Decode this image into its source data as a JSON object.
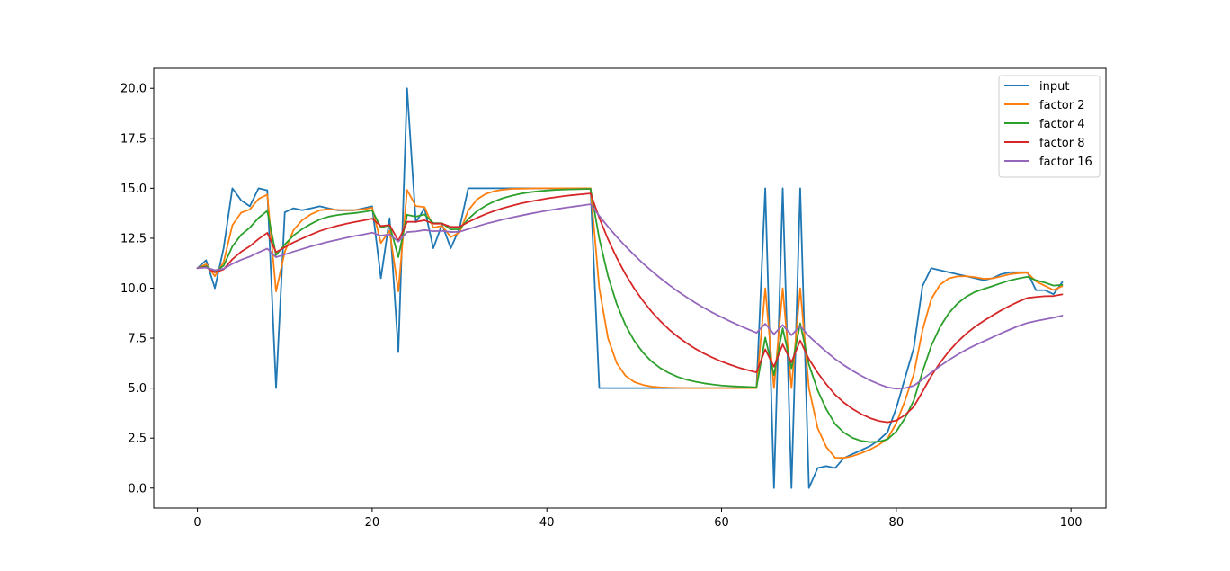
{
  "chart_data": {
    "type": "line",
    "title": "",
    "xlabel": "",
    "ylabel": "",
    "xlim": [
      -5,
      104
    ],
    "ylim": [
      -1,
      21
    ],
    "x_ticks": [
      0,
      20,
      40,
      60,
      80,
      100
    ],
    "y_ticks": [
      0.0,
      2.5,
      5.0,
      7.5,
      10.0,
      12.5,
      15.0,
      17.5,
      20.0
    ],
    "x_tick_labels": [
      "0",
      "20",
      "40",
      "60",
      "80",
      "100"
    ],
    "y_tick_labels": [
      "0.0",
      "2.5",
      "5.0",
      "7.5",
      "10.0",
      "12.5",
      "15.0",
      "17.5",
      "20.0"
    ],
    "grid": false,
    "legend_position": "top-right",
    "series": [
      {
        "name": "input",
        "color": "#1f77b4",
        "values": [
          11.0,
          11.4,
          10.0,
          12.0,
          15.0,
          14.4,
          14.1,
          15.0,
          14.9,
          5.0,
          13.8,
          14.0,
          13.9,
          14.0,
          14.1,
          14.0,
          13.9,
          13.9,
          13.9,
          14.0,
          14.1,
          10.5,
          13.5,
          6.8,
          20.0,
          13.3,
          14.0,
          12.0,
          13.2,
          12.0,
          13.0,
          15.0,
          15.0,
          15.0,
          15.0,
          15.0,
          15.0,
          15.0,
          15.0,
          15.0,
          15.0,
          15.0,
          15.0,
          15.0,
          15.0,
          15.0,
          5.0,
          5.0,
          5.0,
          5.0,
          5.0,
          5.0,
          5.0,
          5.0,
          5.0,
          5.0,
          5.0,
          5.0,
          5.0,
          5.0,
          5.0,
          5.0,
          5.0,
          5.0,
          5.0,
          15.0,
          0.0,
          15.0,
          0.0,
          15.0,
          0.0,
          1.0,
          1.1,
          1.0,
          1.5,
          1.7,
          1.9,
          2.1,
          2.4,
          2.8,
          4.0,
          5.5,
          7.0,
          10.1,
          11.0,
          10.9,
          10.8,
          10.7,
          10.6,
          10.5,
          10.4,
          10.5,
          10.7,
          10.8,
          10.8,
          10.8,
          9.9,
          9.9,
          9.7,
          10.3
        ]
      },
      {
        "name": "factor 2",
        "color": "#ff7f0e",
        "values": [
          11.0,
          11.2,
          10.6,
          11.3,
          13.15,
          13.78,
          13.94,
          14.47,
          14.68,
          9.84,
          11.82,
          12.91,
          13.41,
          13.7,
          13.9,
          13.95,
          13.92,
          13.91,
          13.91,
          13.95,
          14.03,
          12.26,
          12.88,
          9.84,
          14.92,
          14.11,
          14.06,
          13.03,
          13.12,
          12.56,
          12.78,
          13.89,
          14.44,
          14.72,
          14.86,
          14.93,
          14.97,
          14.98,
          14.99,
          15.0,
          15.0,
          15.0,
          15.0,
          15.0,
          15.0,
          15.0,
          10.0,
          7.5,
          6.25,
          5.62,
          5.31,
          5.16,
          5.08,
          5.04,
          5.02,
          5.01,
          5.0,
          5.0,
          5.0,
          5.0,
          5.0,
          5.0,
          5.0,
          5.0,
          5.0,
          10.0,
          5.0,
          10.0,
          5.0,
          10.0,
          5.0,
          3.0,
          2.05,
          1.52,
          1.51,
          1.6,
          1.75,
          1.93,
          2.16,
          2.48,
          3.24,
          4.37,
          5.69,
          7.89,
          9.45,
          10.17,
          10.49,
          10.59,
          10.6,
          10.55,
          10.47,
          10.49,
          10.59,
          10.7,
          10.75,
          10.77,
          10.34,
          10.12,
          9.91,
          10.1
        ]
      },
      {
        "name": "factor 4",
        "color": "#2ca02c",
        "values": [
          11.0,
          11.1,
          10.83,
          11.12,
          12.09,
          12.67,
          13.03,
          13.52,
          13.87,
          11.65,
          12.19,
          12.64,
          12.96,
          13.22,
          13.44,
          13.58,
          13.66,
          13.72,
          13.76,
          13.82,
          13.89,
          13.04,
          13.15,
          11.56,
          13.67,
          13.58,
          13.69,
          13.26,
          13.25,
          12.94,
          12.95,
          13.46,
          13.85,
          14.13,
          14.35,
          14.51,
          14.63,
          14.73,
          14.8,
          14.85,
          14.89,
          14.92,
          14.94,
          14.95,
          14.96,
          14.97,
          12.48,
          10.61,
          9.21,
          8.16,
          7.37,
          6.78,
          6.33,
          6.0,
          5.75,
          5.56,
          5.42,
          5.32,
          5.24,
          5.18,
          5.13,
          5.1,
          5.08,
          5.06,
          5.04,
          7.53,
          5.65,
          7.99,
          5.99,
          8.24,
          6.18,
          4.89,
          3.94,
          3.2,
          2.78,
          2.51,
          2.36,
          2.3,
          2.32,
          2.44,
          2.83,
          3.5,
          4.38,
          5.81,
          7.11,
          8.05,
          8.74,
          9.23,
          9.57,
          9.81,
          9.96,
          10.1,
          10.25,
          10.39,
          10.49,
          10.57,
          10.4,
          10.28,
          10.13,
          10.17
        ]
      },
      {
        "name": "factor 8",
        "color": "#d62728",
        "values": [
          11.0,
          11.05,
          10.79,
          10.94,
          11.45,
          11.82,
          12.1,
          12.46,
          12.77,
          11.8,
          12.05,
          12.29,
          12.49,
          12.68,
          12.86,
          13.0,
          13.12,
          13.22,
          13.31,
          13.39,
          13.48,
          13.11,
          13.16,
          12.37,
          13.32,
          13.32,
          13.4,
          13.23,
          13.23,
          13.07,
          13.07,
          13.31,
          13.52,
          13.71,
          13.87,
          14.01,
          14.13,
          14.24,
          14.33,
          14.41,
          14.49,
          14.55,
          14.61,
          14.66,
          14.7,
          14.74,
          13.52,
          12.45,
          11.52,
          10.7,
          9.99,
          9.37,
          8.82,
          8.35,
          7.93,
          7.57,
          7.25,
          6.97,
          6.73,
          6.52,
          6.33,
          6.17,
          6.02,
          5.9,
          5.79,
          6.94,
          6.07,
          7.19,
          6.29,
          7.38,
          6.45,
          5.77,
          5.19,
          4.67,
          4.28,
          3.96,
          3.7,
          3.5,
          3.36,
          3.29,
          3.38,
          3.65,
          4.07,
          4.82,
          5.6,
          6.26,
          6.83,
          7.31,
          7.72,
          8.07,
          8.36,
          8.63,
          8.89,
          9.12,
          9.33,
          9.51,
          9.56,
          9.6,
          9.61,
          9.69
        ]
      },
      {
        "name": "factor 16",
        "color": "#9467bd",
        "values": [
          11.0,
          11.03,
          10.9,
          10.97,
          11.22,
          11.42,
          11.58,
          11.79,
          11.98,
          11.55,
          11.69,
          11.83,
          11.96,
          12.09,
          12.21,
          12.32,
          12.42,
          12.52,
          12.61,
          12.69,
          12.78,
          12.63,
          12.69,
          12.33,
          12.81,
          12.84,
          12.91,
          12.85,
          12.87,
          12.81,
          12.82,
          12.96,
          13.09,
          13.22,
          13.33,
          13.44,
          13.54,
          13.63,
          13.72,
          13.8,
          13.88,
          13.95,
          14.02,
          14.08,
          14.14,
          14.2,
          13.62,
          13.08,
          12.57,
          12.1,
          11.66,
          11.24,
          10.86,
          10.5,
          10.16,
          9.84,
          9.55,
          9.27,
          9.01,
          8.77,
          8.55,
          8.34,
          8.14,
          7.95,
          7.77,
          8.22,
          7.7,
          8.16,
          7.65,
          8.11,
          7.6,
          7.2,
          6.82,
          6.46,
          6.15,
          5.87,
          5.62,
          5.39,
          5.2,
          5.04,
          4.97,
          5.0,
          5.12,
          5.43,
          5.78,
          6.1,
          6.4,
          6.67,
          6.92,
          7.14,
          7.34,
          7.54,
          7.74,
          7.93,
          8.11,
          8.26,
          8.36,
          8.44,
          8.52,
          8.63
        ]
      }
    ]
  }
}
